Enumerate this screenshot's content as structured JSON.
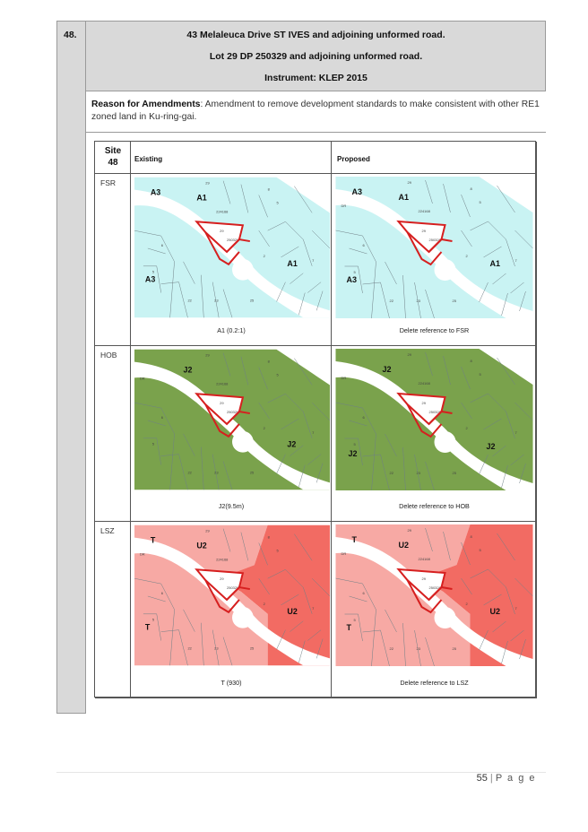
{
  "item_number": "48.",
  "header": {
    "line1": "43 Melaleuca Drive ST IVES and adjoining unformed road.",
    "line2": "Lot 29 DP 250329 and adjoining unformed road.",
    "line3": "Instrument: KLEP 2015"
  },
  "reason": {
    "label": "Reason for Amendments",
    "text": ": Amendment to remove development standards to make consistent with other RE1 zoned land in Ku-ring-gai."
  },
  "table": {
    "site_title": "Site",
    "site_number": "48",
    "col_existing": "Existing",
    "col_proposed": "Proposed",
    "rows": [
      {
        "label": "FSR",
        "existing_caption": "A1 (0.2:1)",
        "proposed_caption": "Delete reference to FSR",
        "fill": "#c9f3f3",
        "zones_existing": [
          "A3",
          "A1",
          "A1",
          "A3"
        ],
        "zones_proposed": [
          "A3",
          "A1",
          "A1",
          "A3"
        ]
      },
      {
        "label": "HOB",
        "existing_caption": "J2(9.5m)",
        "proposed_caption": "Delete reference to HOB",
        "fill": "#7aa24c",
        "zones_existing": [
          "J2",
          "J2"
        ],
        "zones_proposed": [
          "J2",
          "J2",
          "J2"
        ]
      },
      {
        "label": "LSZ",
        "existing_caption": "T (930)",
        "proposed_caption": "Delete reference to LSZ",
        "fill": "#f26b63",
        "fill_light": "#f7a9a4",
        "zones_existing": [
          "T",
          "U2",
          "U2",
          "T"
        ],
        "zones_proposed": [
          "T",
          "U2",
          "U2",
          "T"
        ]
      }
    ],
    "map_labels": {
      "lot": "29",
      "dp": "250329",
      "road": "DR",
      "plan": "224168"
    }
  },
  "footer": {
    "page_number": "55",
    "separator": "|",
    "page_word": "P a g e"
  }
}
